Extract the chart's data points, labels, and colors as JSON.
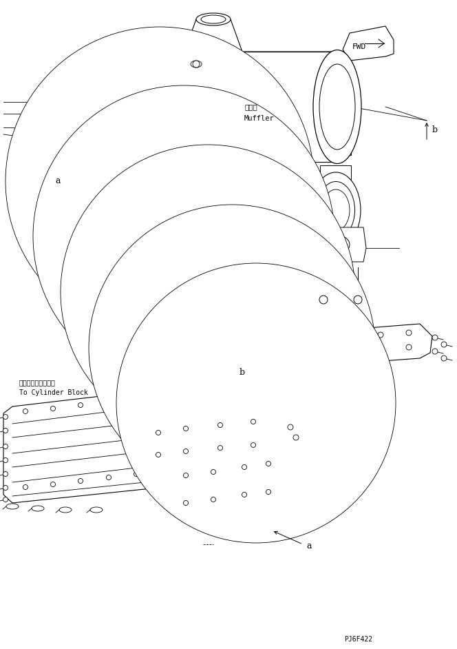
{
  "bg_color": "#ffffff",
  "line_color": "#000000",
  "fig_width": 6.64,
  "fig_height": 9.42,
  "dpi": 100,
  "part_id": "PJ6F422",
  "fwd_label": "FWD",
  "muffler_label_jp": "マフラ",
  "muffler_label_en": "Muffler",
  "cylinder_label_jp": "シリンダブロックへ",
  "cylinder_label_en": "To Cylinder Block",
  "label_a": "a",
  "label_b": "b"
}
